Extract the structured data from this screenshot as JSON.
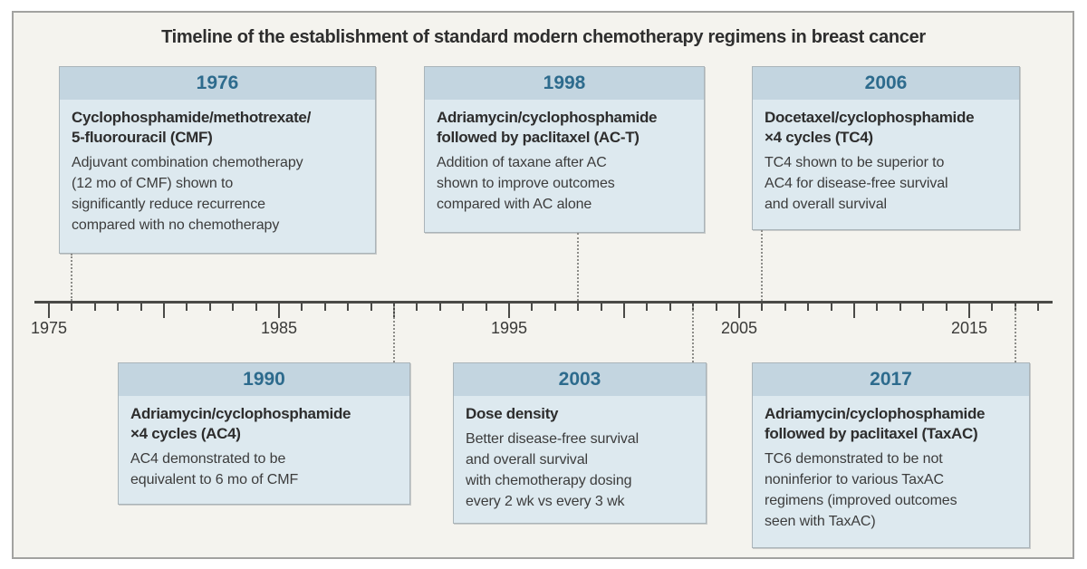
{
  "title": "Timeline of the establishment of standard modern chemotherapy regimens in breast cancer",
  "axis": {
    "start_year": 1975,
    "end_year": 2018,
    "major_tick_interval": 5,
    "tick_labels": [
      "1975",
      "1985",
      "1995",
      "2005",
      "2015"
    ]
  },
  "events": [
    {
      "year": "1976",
      "side": "above",
      "heading": "Cyclophosphamide/methotrexate/\n5-fluorouracil (CMF)",
      "body": "Adjuvant combination chemotherapy\n(12 mo of CMF) shown to\nsignificantly reduce recurrence\ncompared with no chemotherapy"
    },
    {
      "year": "1990",
      "side": "below",
      "heading": "Adriamycin/cyclophosphamide\n×4 cycles (AC4)",
      "body": "AC4 demonstrated to be\nequivalent to 6 mo of CMF"
    },
    {
      "year": "1998",
      "side": "above",
      "heading": "Adriamycin/cyclophosphamide\nfollowed by paclitaxel (AC-T)",
      "body": "Addition of taxane after AC\nshown to improve outcomes\ncompared with AC alone"
    },
    {
      "year": "2003",
      "side": "below",
      "heading": "Dose density",
      "body": "Better disease-free survival\nand overall survival\nwith chemotherapy dosing\nevery 2 wk vs every 3 wk"
    },
    {
      "year": "2006",
      "side": "above",
      "heading": "Docetaxel/cyclophosphamide\n×4 cycles (TC4)",
      "body": "TC4 shown to be superior to\nAC4 for disease-free survival\nand overall survival"
    },
    {
      "year": "2017",
      "side": "below",
      "heading": "Adriamycin/cyclophosphamide\nfollowed by paclitaxel (TaxAC)",
      "body": "TC6 demonstrated to be not\nnoninferior to various TaxAC\nregimens (improved outcomes\nseen with TaxAC)"
    }
  ],
  "colors": {
    "panel_bg": "#f4f3ee",
    "panel_border": "#a2a2a0",
    "box_header_bg": "#c3d5e0",
    "box_body_bg": "#dde9ef",
    "box_border": "#aab4b9",
    "year_text": "#2d6b8d",
    "title_text": "#2e2e2e",
    "body_text": "#3c3c3c",
    "axis_color": "#4a4a47",
    "dotted_line": "#8c8c88"
  }
}
